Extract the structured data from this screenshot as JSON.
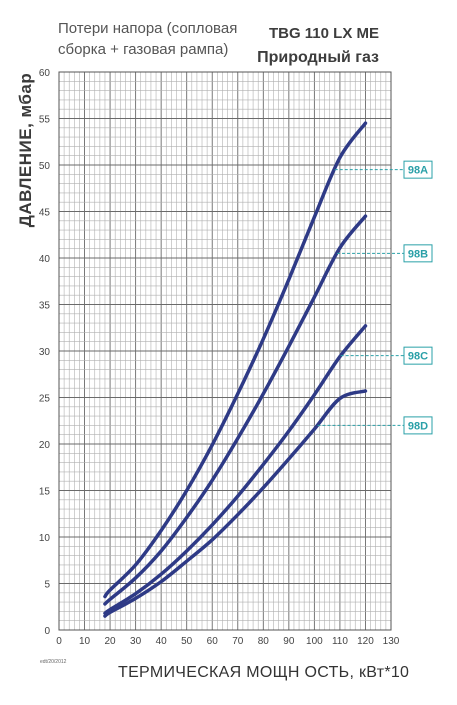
{
  "subtitle_line1": "Потери напора (сопловая",
  "subtitle_line2": "сборка + газовая рампа)",
  "title_line1": "TBG 110 LX ME",
  "title_line2": "Природный газ",
  "footnote": "edt/20/2012",
  "colors": {
    "curve": "#2e3a86",
    "label": "#2aa0a8",
    "grid": "#6a6a6a",
    "minor_grid": "#b0b0b0"
  },
  "chart_data": {
    "type": "line",
    "title": "TBG 110 LX ME",
    "subtitle": "Природный газ",
    "xlabel": "ТЕРМИЧЕСКАЯ МОЩН ОСТЬ, кВт*10",
    "ylabel": "ДАВЛЕНИЕ, мбар",
    "xlim": [
      0,
      130
    ],
    "ylim": [
      0,
      60
    ],
    "x_ticks": [
      "0",
      "10",
      "20",
      "30",
      "40",
      "50",
      "60",
      "70",
      "80",
      "90",
      "100",
      "110",
      "120",
      "130"
    ],
    "y_ticks": [
      "0",
      "5",
      "10",
      "15",
      "20",
      "25",
      "30",
      "35",
      "40",
      "45",
      "50",
      "55",
      "60"
    ],
    "grid": true,
    "series": [
      {
        "name": "98A",
        "x": [
          18,
          20,
          30,
          40,
          50,
          60,
          70,
          80,
          90,
          100,
          110,
          120
        ],
        "values": [
          3.6,
          4.3,
          7.0,
          10.7,
          15.0,
          19.9,
          25.4,
          31.3,
          37.7,
          44.4,
          50.8,
          54.5
        ]
      },
      {
        "name": "98B",
        "x": [
          18,
          20,
          30,
          40,
          50,
          60,
          70,
          80,
          90,
          100,
          110,
          120
        ],
        "values": [
          2.8,
          3.3,
          5.6,
          8.5,
          12.1,
          16.1,
          20.6,
          25.4,
          30.5,
          35.8,
          41.1,
          44.5
        ]
      },
      {
        "name": "98C",
        "x": [
          18,
          20,
          30,
          40,
          50,
          60,
          70,
          80,
          90,
          100,
          110,
          120
        ],
        "values": [
          1.8,
          2.2,
          3.9,
          6.0,
          8.5,
          11.3,
          14.4,
          17.8,
          21.4,
          25.3,
          29.4,
          32.7
        ]
      },
      {
        "name": "98D",
        "x": [
          18,
          20,
          30,
          40,
          50,
          60,
          70,
          80,
          90,
          100,
          110,
          120
        ],
        "values": [
          1.5,
          1.9,
          3.4,
          5.2,
          7.4,
          9.7,
          12.4,
          15.3,
          18.4,
          21.6,
          24.9,
          25.7
        ]
      }
    ],
    "legend_tags": [
      {
        "text": "98A",
        "series": "98A",
        "at_y": 49.5
      },
      {
        "text": "98B",
        "series": "98B",
        "at_y": 40.5
      },
      {
        "text": "98C",
        "series": "98C",
        "at_y": 29.5
      },
      {
        "text": "98D",
        "series": "98D",
        "at_y": 22.0
      }
    ]
  }
}
